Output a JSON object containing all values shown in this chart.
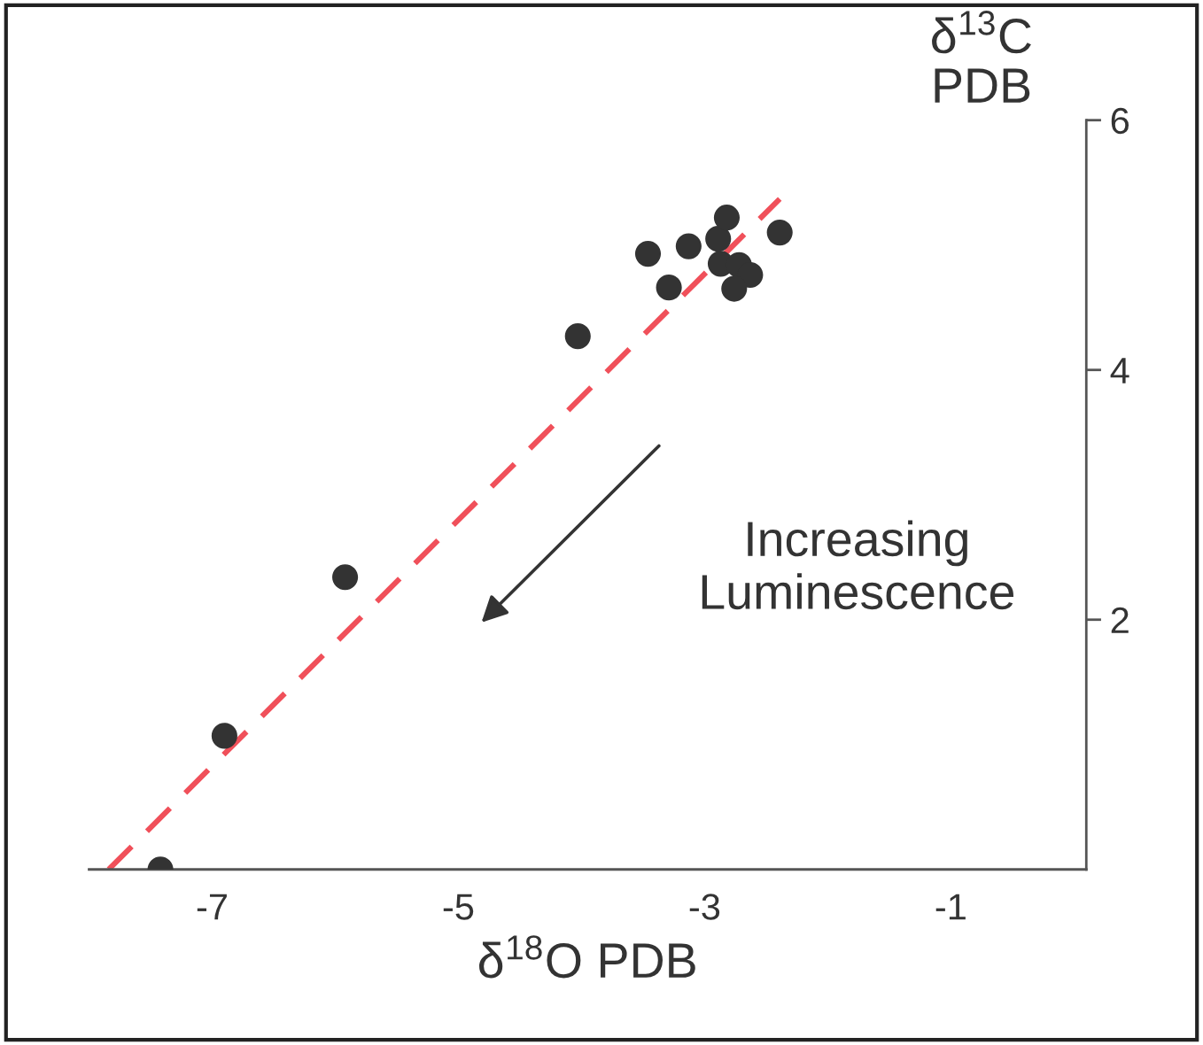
{
  "chart_data": {
    "type": "scatter",
    "xlabel": "δ$^{18}$O PDB",
    "ylabel": "δ$^{13}$C\nPDB",
    "annotations": [
      "Increasing\nLuminescence"
    ],
    "series": [
      {
        "color": "#333333",
        "marker": "circle",
        "x": [
          -7.42,
          -6.9,
          -5.92,
          -4.03,
          -3.46,
          -3.29,
          -3.13,
          -2.89,
          -2.82,
          -2.87,
          -2.72,
          -2.63,
          -2.76,
          -2.39
        ],
        "values": [
          0.0,
          1.07,
          2.34,
          4.27,
          4.93,
          4.66,
          4.99,
          5.05,
          5.22,
          4.85,
          4.84,
          4.76,
          4.65,
          5.1
        ]
      },
      {
        "type": "line",
        "color": "#f0505a",
        "line_style": "dashed",
        "x": [
          -7.84,
          -2.39
        ],
        "values": [
          0.0,
          5.37
        ]
      }
    ],
    "xlim": [
      -8,
      0.1
    ],
    "ylim": [
      0,
      6
    ],
    "xticks": [
      -7,
      -5,
      -3,
      -1
    ],
    "yticks": [
      2,
      4,
      6
    ],
    "grid": false,
    "legend": false
  }
}
